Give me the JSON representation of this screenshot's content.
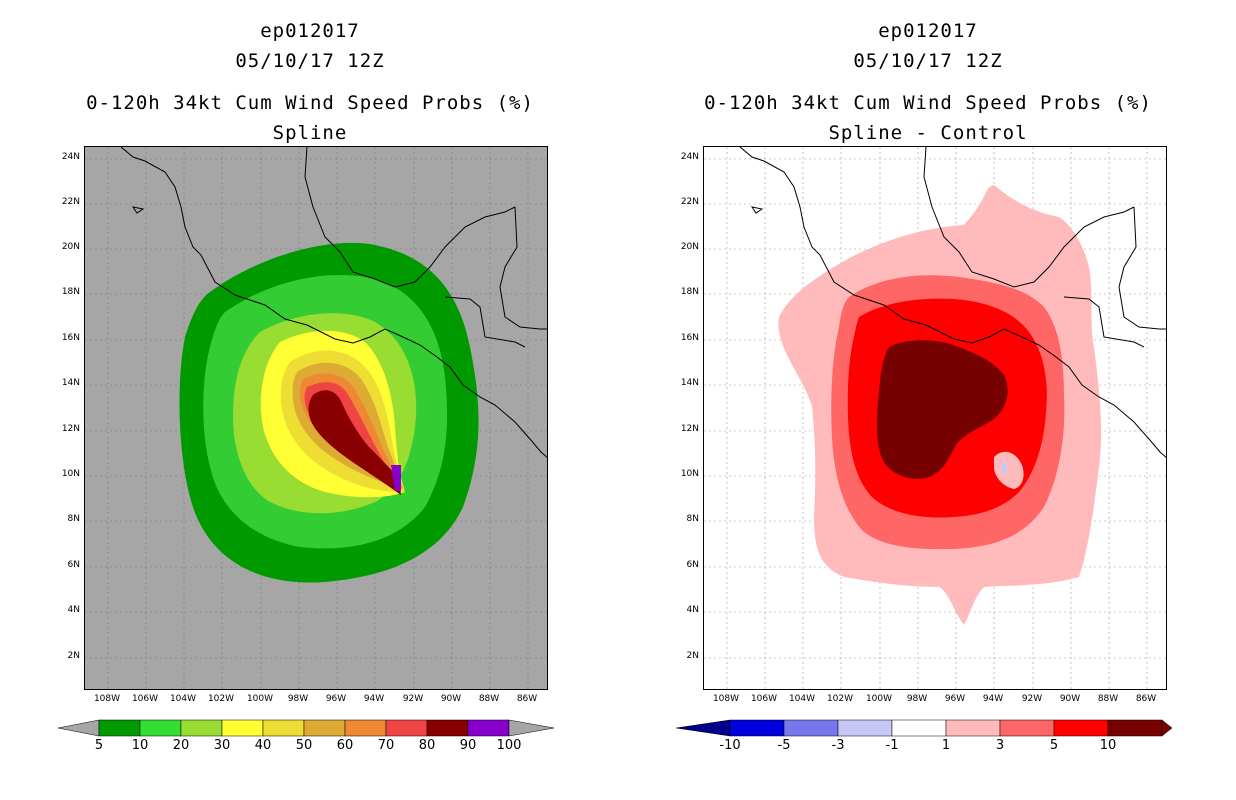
{
  "left_panel": {
    "title_line1": "ep012017",
    "title_line2": "05/10/17 12Z",
    "title_line3": "0-120h 34kt Cum Wind Speed Probs (%)",
    "title_line4": "Spline"
  },
  "right_panel": {
    "title_line1": "ep012017",
    "title_line2": "05/10/17 12Z",
    "title_line3": "0-120h 34kt Cum Wind Speed Probs (%)",
    "title_line4": "Spline - Control"
  },
  "lat_labels": [
    "24N",
    "22N",
    "20N",
    "18N",
    "16N",
    "14N",
    "12N",
    "10N",
    "8N",
    "6N",
    "4N",
    "2N"
  ],
  "lon_labels": [
    "108W",
    "106W",
    "104W",
    "102W",
    "100W",
    "98W",
    "96W",
    "94W",
    "92W",
    "90W",
    "88W",
    "86W"
  ],
  "left_colorbar": {
    "labels": [
      "5",
      "10",
      "20",
      "30",
      "40",
      "50",
      "60",
      "70",
      "80",
      "90",
      "100"
    ],
    "colors": [
      "#009900",
      "#33dd33",
      "#99dd33",
      "#ffff33",
      "#eedd33",
      "#ddaa33",
      "#ee8833",
      "#ee4444",
      "#880000",
      "#8800cc"
    ],
    "end_color": "#a6a6a6"
  },
  "right_colorbar": {
    "labels": [
      "-10",
      "-5",
      "-3",
      "-1",
      "1",
      "3",
      "5",
      "10"
    ],
    "colors": [
      "#0000dd",
      "#7777ee",
      "#c8c8f8",
      "#ffffff",
      "#ffbbbb",
      "#ff6666",
      "#ff0000",
      "#770000"
    ],
    "low_end_color": "#00008b",
    "high_end_color": "#770000"
  },
  "left_colors": {
    "c5": "#009900",
    "c10": "#33cc33",
    "c20": "#99dd33",
    "c30": "#ffff33",
    "c40": "#eedd33",
    "c50": "#ddaa33",
    "c60": "#ee8833",
    "c70": "#ee4444",
    "c80": "#880000",
    "c90": "#8800cc"
  },
  "right_colors": {
    "p1": "#ffbbbb",
    "p3": "#ff6666",
    "p5": "#ff0000",
    "p10": "#770000",
    "n1": "#c8c8f8"
  }
}
